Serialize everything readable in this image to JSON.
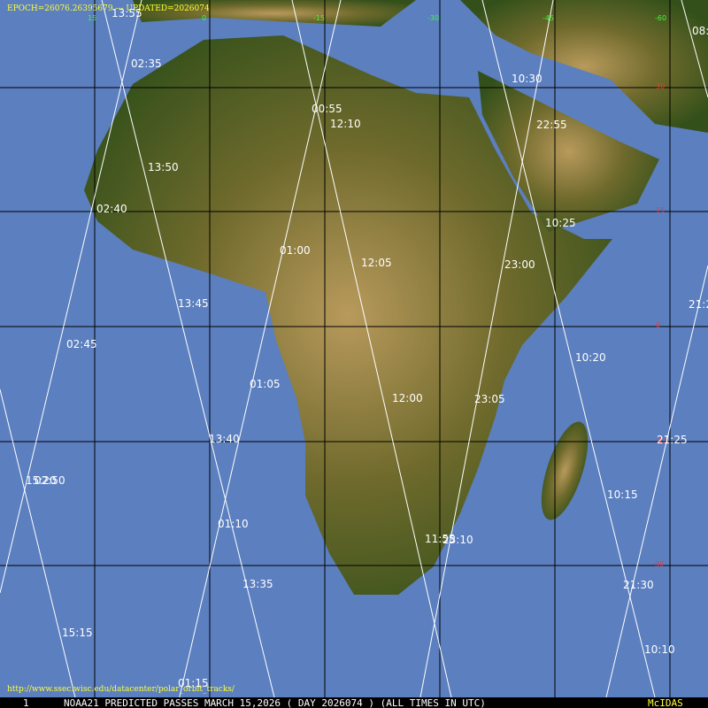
{
  "header": {
    "epoch": "EPOCH=26076.26395679 --- UPDATED=2026074"
  },
  "footer": {
    "url": "http://www.ssec.wisc.edu/datacenter/polar_orbit_tracks/",
    "frame": "1",
    "caption": "NOAA21 PREDICTED PASSES MARCH 15,2026 ( DAY 2026074 ) (ALL TIMES IN UTC)",
    "brand": "McIDAS"
  },
  "lon_labels": [
    "15",
    "0",
    "-15",
    "-30",
    "-45",
    "-60"
  ],
  "lat_labels": [
    "30",
    "15",
    "0",
    "-15",
    "-30"
  ],
  "passes": [
    "13:55",
    "02:35",
    "00:55",
    "12:10",
    "10:30",
    "22:55",
    "08:",
    "13:50",
    "02:40",
    "10:25",
    "01:00",
    "12:05",
    "23:00",
    "13:45",
    "21:2",
    "02:45",
    "10:20",
    "01:05",
    "12:00",
    "23:05",
    "13:40",
    "21:25",
    "15:20",
    "02:50",
    "10:15",
    "01:10",
    "11:55",
    "23:10",
    "13:35",
    "21:30",
    "15:15",
    "10:10",
    "01:15"
  ]
}
